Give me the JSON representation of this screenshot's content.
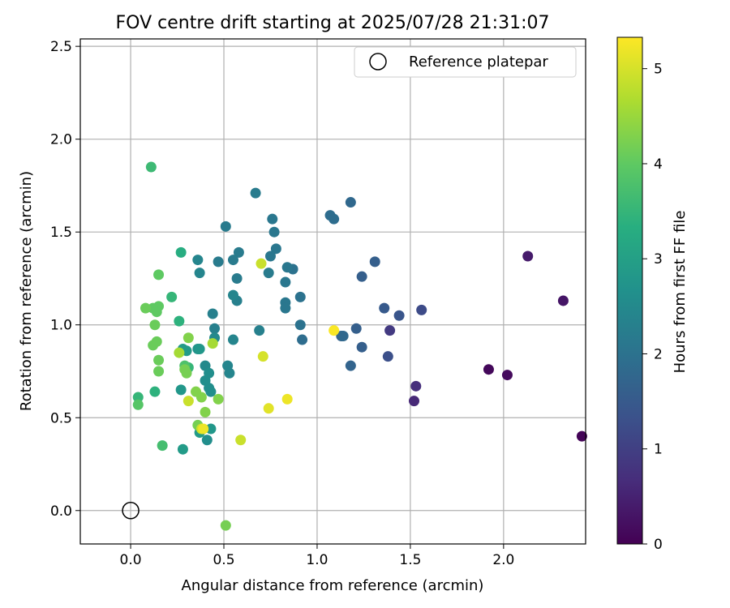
{
  "chart_data": {
    "type": "scatter",
    "title": "FOV centre drift starting at 2025/07/28 21:31:07",
    "xlabel": "Angular distance from reference (arcmin)",
    "ylabel": "Rotation from reference (arcmin)",
    "xlim": [
      -0.27,
      2.44
    ],
    "ylim": [
      -0.18,
      2.54
    ],
    "xticks": [
      0.0,
      0.5,
      1.0,
      1.5,
      2.0
    ],
    "yticks": [
      0.0,
      0.5,
      1.0,
      1.5,
      2.0,
      2.5
    ],
    "xtick_labels": [
      "0.0",
      "0.5",
      "1.0",
      "1.5",
      "2.0"
    ],
    "ytick_labels": [
      "0.0",
      "0.5",
      "1.0",
      "1.5",
      "2.0",
      "2.5"
    ],
    "grid": true,
    "legend": {
      "position": "top-right",
      "entries": [
        "Reference platepar"
      ]
    },
    "reference_point": {
      "x": 0.0,
      "y": 0.0
    },
    "colorbar": {
      "label": "Hours from first FF file",
      "range": [
        0,
        5.33
      ],
      "ticks": [
        0,
        1,
        2,
        3,
        4,
        5
      ],
      "tick_labels": [
        "0",
        "1",
        "2",
        "3",
        "4",
        "5"
      ],
      "colormap": "viridis"
    },
    "points": [
      {
        "x": 2.42,
        "y": 0.4,
        "h": 0.05
      },
      {
        "x": 1.92,
        "y": 0.76,
        "h": 0.1
      },
      {
        "x": 2.02,
        "y": 0.73,
        "h": 0.15
      },
      {
        "x": 2.13,
        "y": 1.37,
        "h": 0.4
      },
      {
        "x": 2.32,
        "y": 1.13,
        "h": 0.3
      },
      {
        "x": 1.52,
        "y": 0.59,
        "h": 0.6
      },
      {
        "x": 1.53,
        "y": 0.67,
        "h": 0.7
      },
      {
        "x": 1.39,
        "y": 0.97,
        "h": 0.9
      },
      {
        "x": 1.56,
        "y": 1.08,
        "h": 1.2
      },
      {
        "x": 1.38,
        "y": 0.83,
        "h": 1.3
      },
      {
        "x": 1.44,
        "y": 1.05,
        "h": 1.4
      },
      {
        "x": 1.36,
        "y": 1.09,
        "h": 1.5
      },
      {
        "x": 1.31,
        "y": 1.34,
        "h": 1.6
      },
      {
        "x": 1.24,
        "y": 1.26,
        "h": 1.6
      },
      {
        "x": 1.24,
        "y": 0.88,
        "h": 1.6
      },
      {
        "x": 1.21,
        "y": 0.98,
        "h": 1.6
      },
      {
        "x": 1.18,
        "y": 0.78,
        "h": 1.7
      },
      {
        "x": 1.13,
        "y": 0.94,
        "h": 1.7
      },
      {
        "x": 1.14,
        "y": 0.94,
        "h": 1.8
      },
      {
        "x": 1.18,
        "y": 1.66,
        "h": 1.8
      },
      {
        "x": 1.07,
        "y": 1.59,
        "h": 1.9
      },
      {
        "x": 1.09,
        "y": 1.57,
        "h": 1.9
      },
      {
        "x": 0.92,
        "y": 0.92,
        "h": 1.9
      },
      {
        "x": 0.91,
        "y": 1.0,
        "h": 2.0
      },
      {
        "x": 0.91,
        "y": 1.15,
        "h": 2.0
      },
      {
        "x": 0.87,
        "y": 1.3,
        "h": 2.0
      },
      {
        "x": 0.84,
        "y": 1.31,
        "h": 2.1
      },
      {
        "x": 0.83,
        "y": 1.23,
        "h": 2.1
      },
      {
        "x": 0.83,
        "y": 1.12,
        "h": 2.1
      },
      {
        "x": 0.83,
        "y": 1.09,
        "h": 2.1
      },
      {
        "x": 0.78,
        "y": 1.41,
        "h": 2.1
      },
      {
        "x": 0.77,
        "y": 1.5,
        "h": 2.1
      },
      {
        "x": 0.76,
        "y": 1.57,
        "h": 2.1
      },
      {
        "x": 0.75,
        "y": 1.37,
        "h": 2.1
      },
      {
        "x": 0.74,
        "y": 1.28,
        "h": 2.2
      },
      {
        "x": 0.67,
        "y": 1.71,
        "h": 2.2
      },
      {
        "x": 0.69,
        "y": 0.97,
        "h": 2.3
      },
      {
        "x": 0.58,
        "y": 1.39,
        "h": 2.2
      },
      {
        "x": 0.57,
        "y": 1.25,
        "h": 2.2
      },
      {
        "x": 0.57,
        "y": 1.13,
        "h": 2.3
      },
      {
        "x": 0.55,
        "y": 1.16,
        "h": 2.4
      },
      {
        "x": 0.55,
        "y": 1.35,
        "h": 2.2
      },
      {
        "x": 0.51,
        "y": 1.53,
        "h": 2.2
      },
      {
        "x": 0.47,
        "y": 1.34,
        "h": 2.2
      },
      {
        "x": 0.55,
        "y": 0.92,
        "h": 2.4
      },
      {
        "x": 0.52,
        "y": 0.78,
        "h": 2.4
      },
      {
        "x": 0.53,
        "y": 0.74,
        "h": 2.4
      },
      {
        "x": 0.44,
        "y": 1.06,
        "h": 2.3
      },
      {
        "x": 0.45,
        "y": 0.98,
        "h": 2.3
      },
      {
        "x": 0.45,
        "y": 0.93,
        "h": 2.5
      },
      {
        "x": 0.36,
        "y": 1.35,
        "h": 2.4
      },
      {
        "x": 0.37,
        "y": 1.28,
        "h": 2.4
      },
      {
        "x": 0.4,
        "y": 0.78,
        "h": 2.5
      },
      {
        "x": 0.42,
        "y": 0.74,
        "h": 2.6
      },
      {
        "x": 0.4,
        "y": 0.7,
        "h": 2.6
      },
      {
        "x": 0.42,
        "y": 0.66,
        "h": 2.6
      },
      {
        "x": 0.43,
        "y": 0.64,
        "h": 2.6
      },
      {
        "x": 0.36,
        "y": 0.87,
        "h": 2.7
      },
      {
        "x": 0.37,
        "y": 0.87,
        "h": 2.8
      },
      {
        "x": 0.27,
        "y": 0.65,
        "h": 2.8
      },
      {
        "x": 0.3,
        "y": 0.86,
        "h": 2.9
      },
      {
        "x": 0.28,
        "y": 0.87,
        "h": 2.9
      },
      {
        "x": 0.43,
        "y": 0.44,
        "h": 2.8
      },
      {
        "x": 0.41,
        "y": 0.38,
        "h": 2.6
      },
      {
        "x": 0.37,
        "y": 0.42,
        "h": 2.9
      },
      {
        "x": 0.28,
        "y": 0.33,
        "h": 2.9
      },
      {
        "x": 0.27,
        "y": 1.39,
        "h": 3.3
      },
      {
        "x": 0.26,
        "y": 1.02,
        "h": 3.4
      },
      {
        "x": 0.22,
        "y": 1.15,
        "h": 3.5
      },
      {
        "x": 0.31,
        "y": 0.77,
        "h": 3.5
      },
      {
        "x": 0.13,
        "y": 0.64,
        "h": 3.4
      },
      {
        "x": 0.04,
        "y": 0.61,
        "h": 3.5
      },
      {
        "x": 0.11,
        "y": 1.85,
        "h": 3.6
      },
      {
        "x": 0.17,
        "y": 0.35,
        "h": 3.7
      },
      {
        "x": 0.29,
        "y": 0.78,
        "h": 3.8
      },
      {
        "x": 0.04,
        "y": 0.57,
        "h": 3.9
      },
      {
        "x": 0.15,
        "y": 1.27,
        "h": 4.0
      },
      {
        "x": 0.15,
        "y": 1.1,
        "h": 4.0
      },
      {
        "x": 0.12,
        "y": 1.09,
        "h": 4.0
      },
      {
        "x": 0.14,
        "y": 1.07,
        "h": 4.0
      },
      {
        "x": 0.08,
        "y": 1.09,
        "h": 4.1
      },
      {
        "x": 0.13,
        "y": 1.0,
        "h": 4.1
      },
      {
        "x": 0.14,
        "y": 0.91,
        "h": 4.1
      },
      {
        "x": 0.12,
        "y": 0.89,
        "h": 4.1
      },
      {
        "x": 0.15,
        "y": 0.81,
        "h": 4.1
      },
      {
        "x": 0.15,
        "y": 0.75,
        "h": 4.1
      },
      {
        "x": 0.3,
        "y": 0.74,
        "h": 4.2
      },
      {
        "x": 0.29,
        "y": 0.76,
        "h": 4.2
      },
      {
        "x": 0.31,
        "y": 0.93,
        "h": 4.3
      },
      {
        "x": 0.35,
        "y": 0.64,
        "h": 4.3
      },
      {
        "x": 0.38,
        "y": 0.61,
        "h": 4.3
      },
      {
        "x": 0.4,
        "y": 0.53,
        "h": 4.3
      },
      {
        "x": 0.47,
        "y": 0.6,
        "h": 4.3
      },
      {
        "x": 0.36,
        "y": 0.46,
        "h": 4.2
      },
      {
        "x": 0.51,
        "y": -0.08,
        "h": 4.2
      },
      {
        "x": 0.26,
        "y": 0.85,
        "h": 4.6
      },
      {
        "x": 0.44,
        "y": 0.9,
        "h": 4.6
      },
      {
        "x": 0.31,
        "y": 0.59,
        "h": 4.9
      },
      {
        "x": 0.38,
        "y": 0.44,
        "h": 4.9
      },
      {
        "x": 0.39,
        "y": 0.44,
        "h": 5.2
      },
      {
        "x": 0.59,
        "y": 0.38,
        "h": 4.9
      },
      {
        "x": 0.7,
        "y": 1.33,
        "h": 4.9
      },
      {
        "x": 0.71,
        "y": 0.83,
        "h": 5.0
      },
      {
        "x": 0.74,
        "y": 0.55,
        "h": 5.1
      },
      {
        "x": 0.84,
        "y": 0.6,
        "h": 5.2
      },
      {
        "x": 1.09,
        "y": 0.97,
        "h": 5.3
      }
    ]
  }
}
